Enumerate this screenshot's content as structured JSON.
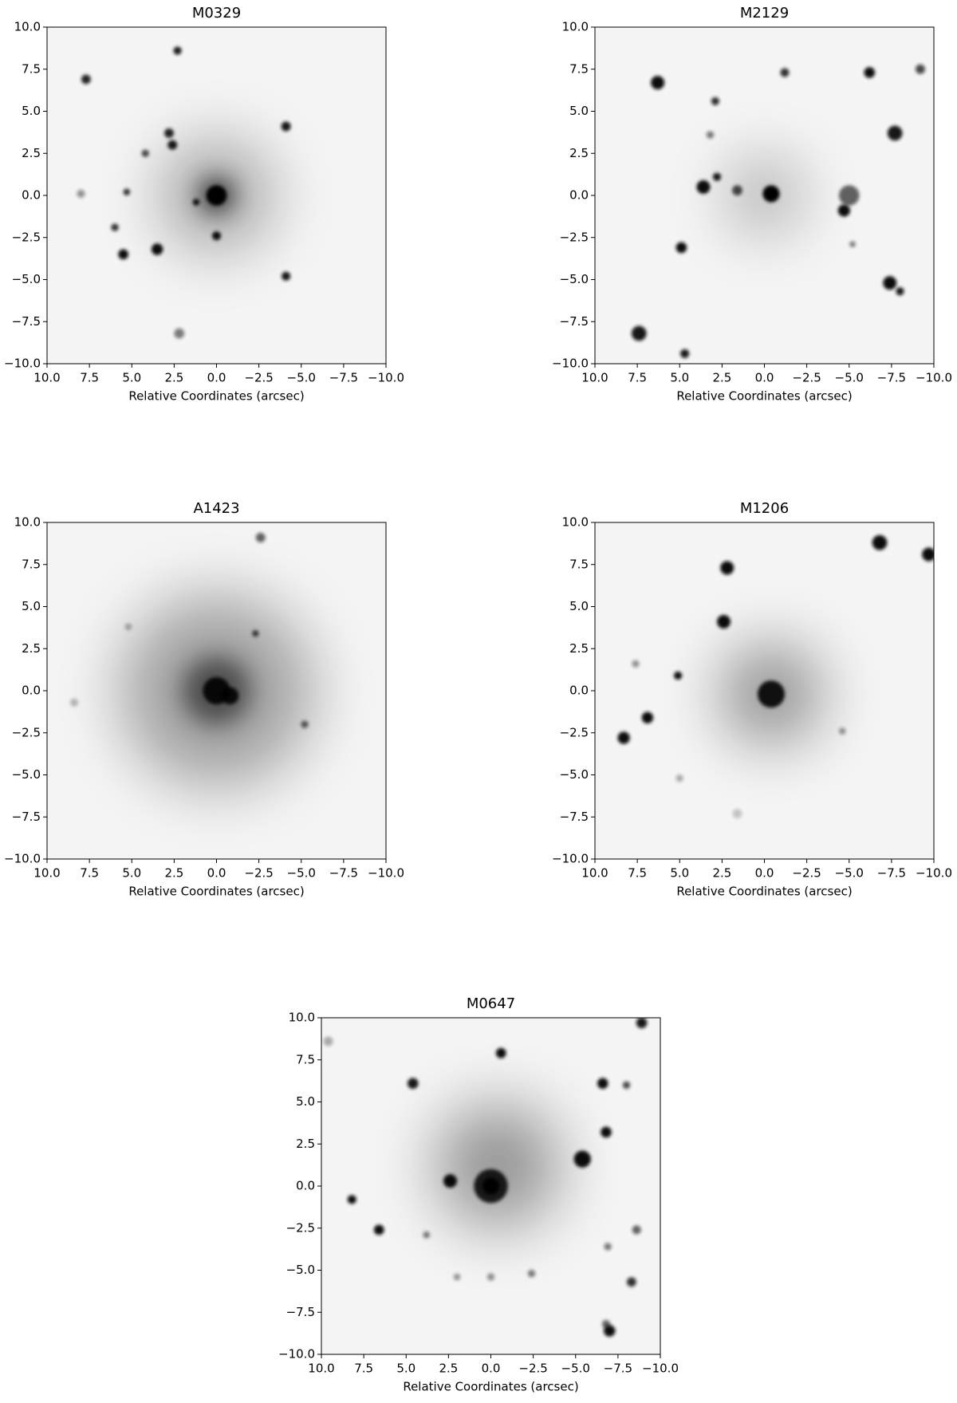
{
  "chart_data": [
    {
      "type": "image",
      "title": "M0329",
      "xlabel": "Relative Coordinates (arcsec)",
      "xlim": [
        10,
        -10
      ],
      "ylim": [
        -10,
        10
      ],
      "xticks": [
        {
          "value": 10,
          "label": "10.0"
        },
        7.5,
        {
          "value": 5,
          "label": "5.0"
        },
        2.5,
        {
          "value": 0,
          "label": "0.0"
        },
        {
          "value": -2.5,
          "label": "−2.5"
        },
        {
          "value": -5,
          "label": "−5.0"
        },
        {
          "value": -7.5,
          "label": "−7.5"
        },
        {
          "value": -10,
          "label": "−10.0"
        }
      ],
      "yticks": [
        {
          "value": -10,
          "label": "−10.0"
        },
        {
          "value": -7.5,
          "label": "−7.5"
        },
        {
          "value": -5,
          "label": "−5.0"
        },
        {
          "value": -2.5,
          "label": "−2.5"
        },
        {
          "value": 0,
          "label": "0.0"
        },
        2.5,
        {
          "value": 5,
          "label": "5.0"
        },
        7.5,
        {
          "value": 10,
          "label": "10.0"
        }
      ]
    },
    {
      "type": "image",
      "title": "M2129",
      "xlabel": "Relative Coordinates (arcsec)",
      "xlim": [
        10,
        -10
      ],
      "ylim": [
        -10,
        10
      ],
      "xticks": [
        {
          "value": 10,
          "label": "10.0"
        },
        7.5,
        {
          "value": 5,
          "label": "5.0"
        },
        2.5,
        {
          "value": 0,
          "label": "0.0"
        },
        {
          "value": -2.5,
          "label": "−2.5"
        },
        {
          "value": -5,
          "label": "−5.0"
        },
        {
          "value": -7.5,
          "label": "−7.5"
        },
        {
          "value": -10,
          "label": "−10.0"
        }
      ],
      "yticks": [
        {
          "value": -10,
          "label": "−10.0"
        },
        {
          "value": -7.5,
          "label": "−7.5"
        },
        {
          "value": -5,
          "label": "−5.0"
        },
        {
          "value": -2.5,
          "label": "−2.5"
        },
        {
          "value": 0,
          "label": "0.0"
        },
        2.5,
        {
          "value": 5,
          "label": "5.0"
        },
        7.5,
        {
          "value": 10,
          "label": "10.0"
        }
      ]
    },
    {
      "type": "image",
      "title": "A1423",
      "xlabel": "Relative Coordinates (arcsec)",
      "xlim": [
        10,
        -10
      ],
      "ylim": [
        -10,
        10
      ],
      "xticks": [
        {
          "value": 10,
          "label": "10.0"
        },
        7.5,
        {
          "value": 5,
          "label": "5.0"
        },
        2.5,
        {
          "value": 0,
          "label": "0.0"
        },
        {
          "value": -2.5,
          "label": "−2.5"
        },
        {
          "value": -5,
          "label": "−5.0"
        },
        {
          "value": -7.5,
          "label": "−7.5"
        },
        {
          "value": -10,
          "label": "−10.0"
        }
      ],
      "yticks": [
        {
          "value": -10,
          "label": "−10.0"
        },
        {
          "value": -7.5,
          "label": "−7.5"
        },
        {
          "value": -5,
          "label": "−5.0"
        },
        {
          "value": -2.5,
          "label": "−2.5"
        },
        {
          "value": 0,
          "label": "0.0"
        },
        2.5,
        {
          "value": 5,
          "label": "5.0"
        },
        7.5,
        {
          "value": 10,
          "label": "10.0"
        }
      ]
    },
    {
      "type": "image",
      "title": "M1206",
      "xlabel": "Relative Coordinates (arcsec)",
      "xlim": [
        10,
        -10
      ],
      "ylim": [
        -10,
        10
      ],
      "xticks": [
        {
          "value": 10,
          "label": "10.0"
        },
        7.5,
        {
          "value": 5,
          "label": "5.0"
        },
        2.5,
        {
          "value": 0,
          "label": "0.0"
        },
        {
          "value": -2.5,
          "label": "−2.5"
        },
        {
          "value": -5,
          "label": "−5.0"
        },
        {
          "value": -7.5,
          "label": "−7.5"
        },
        {
          "value": -10,
          "label": "−10.0"
        }
      ],
      "yticks": [
        {
          "value": -10,
          "label": "−10.0"
        },
        {
          "value": -7.5,
          "label": "−7.5"
        },
        {
          "value": -5,
          "label": "−5.0"
        },
        {
          "value": -2.5,
          "label": "−2.5"
        },
        {
          "value": 0,
          "label": "0.0"
        },
        2.5,
        {
          "value": 5,
          "label": "5.0"
        },
        7.5,
        {
          "value": 10,
          "label": "10.0"
        }
      ]
    },
    {
      "type": "image",
      "title": "M0647",
      "xlabel": "Relative Coordinates (arcsec)",
      "xlim": [
        10,
        -10
      ],
      "ylim": [
        -10,
        10
      ],
      "xticks": [
        {
          "value": 10,
          "label": "10.0"
        },
        7.5,
        {
          "value": 5,
          "label": "5.0"
        },
        2.5,
        {
          "value": 0,
          "label": "0.0"
        },
        {
          "value": -2.5,
          "label": "−2.5"
        },
        {
          "value": -5,
          "label": "−5.0"
        },
        {
          "value": -7.5,
          "label": "−7.5"
        },
        {
          "value": -10,
          "label": "−10.0"
        }
      ],
      "yticks": [
        {
          "value": -10,
          "label": "−10.0"
        },
        {
          "value": -7.5,
          "label": "−7.5"
        },
        {
          "value": -5,
          "label": "−5.0"
        },
        {
          "value": -2.5,
          "label": "−2.5"
        },
        {
          "value": 0,
          "label": "0.0"
        },
        2.5,
        {
          "value": 5,
          "label": "5.0"
        },
        7.5,
        {
          "value": 10,
          "label": "10.0"
        }
      ]
    }
  ]
}
